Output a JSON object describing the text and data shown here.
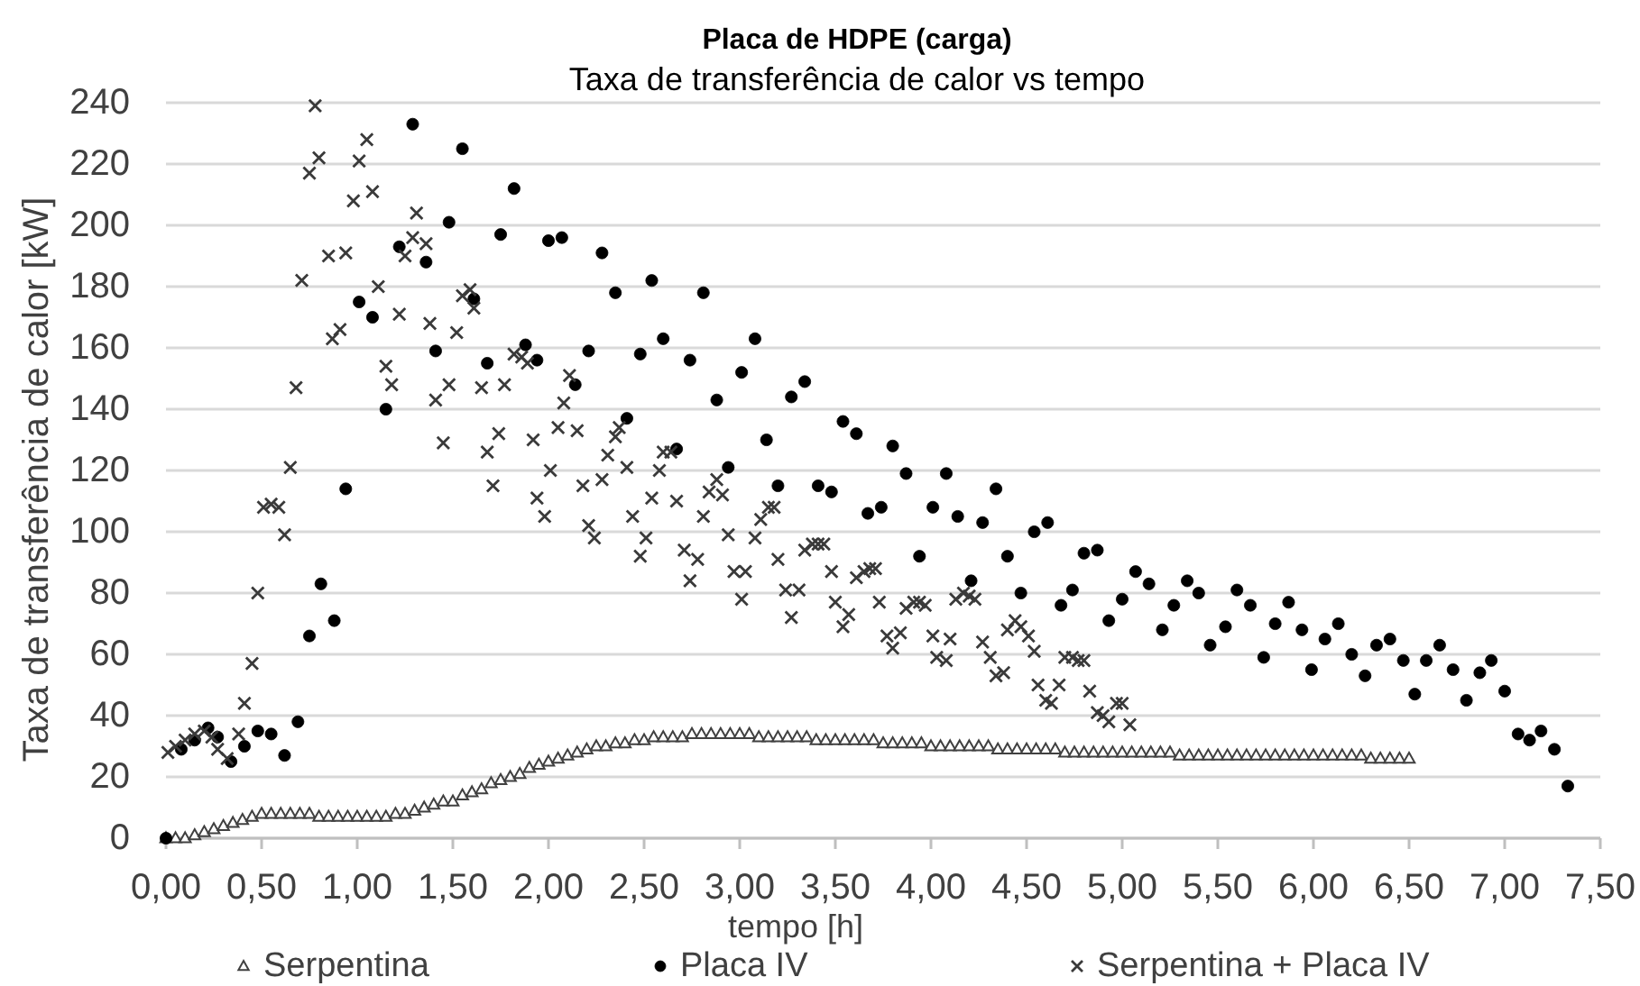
{
  "chart_data": {
    "type": "scatter",
    "title": "Placa de HDPE (carga)",
    "subtitle": "Taxa de transferência de calor vs tempo",
    "xlabel": "tempo [h]",
    "ylabel": "Taxa de transferência de calor [kW]",
    "xlim": [
      0,
      7.5
    ],
    "xticks": [
      {
        "value": 0,
        "label": "0,00"
      },
      {
        "value": 0.5,
        "label": "0,50"
      },
      {
        "value": 1,
        "label": "1,00"
      },
      {
        "value": 1.5,
        "label": "1,50"
      },
      {
        "value": 2,
        "label": "2,00"
      },
      {
        "value": 2.5,
        "label": "2,50"
      },
      {
        "value": 3,
        "label": "3,00"
      },
      {
        "value": 3.5,
        "label": "3,50"
      },
      {
        "value": 4,
        "label": "4,00"
      },
      {
        "value": 4.5,
        "label": "4,50"
      },
      {
        "value": 5,
        "label": "5,00"
      },
      {
        "value": 5.5,
        "label": "5,50"
      },
      {
        "value": 6,
        "label": "6,00"
      },
      {
        "value": 6.5,
        "label": "6,50"
      },
      {
        "value": 7,
        "label": "7,00"
      },
      {
        "value": 7.5,
        "label": "7,50"
      }
    ],
    "ylim": [
      0,
      240
    ],
    "yticks": [
      0,
      20,
      40,
      60,
      80,
      100,
      120,
      140,
      160,
      180,
      200,
      220,
      240
    ],
    "grid": "y",
    "legend": "bottom",
    "series": [
      {
        "name": "Serpentina",
        "color": "#404040",
        "marker": "triangle",
        "x": [
          0,
          0.05,
          0.1,
          0.15,
          0.2,
          0.25,
          0.3,
          0.35,
          0.4,
          0.45,
          0.5,
          0.55,
          0.6,
          0.65,
          0.7,
          0.75,
          0.8,
          0.85,
          0.9,
          0.95,
          1,
          1.05,
          1.1,
          1.15,
          1.2,
          1.25,
          1.3,
          1.35,
          1.4,
          1.45,
          1.5,
          1.55,
          1.6,
          1.65,
          1.7,
          1.75,
          1.8,
          1.85,
          1.9,
          1.95,
          2,
          2.05,
          2.1,
          2.15,
          2.2,
          2.25,
          2.3,
          2.35,
          2.4,
          2.45,
          2.5,
          2.55,
          2.6,
          2.65,
          2.7,
          2.75,
          2.8,
          2.85,
          2.9,
          2.95,
          3,
          3.05,
          3.1,
          3.15,
          3.2,
          3.25,
          3.3,
          3.35,
          3.4,
          3.45,
          3.5,
          3.55,
          3.6,
          3.65,
          3.7,
          3.75,
          3.8,
          3.85,
          3.9,
          3.95,
          4,
          4.05,
          4.1,
          4.15,
          4.2,
          4.25,
          4.3,
          4.35,
          4.4,
          4.45,
          4.5,
          4.55,
          4.6,
          4.65,
          4.7,
          4.75,
          4.8,
          4.85,
          4.9,
          4.95,
          5,
          5.05,
          5.1,
          5.15,
          5.2,
          5.25,
          5.3,
          5.35,
          5.4,
          5.45,
          5.5,
          5.55,
          5.6,
          5.65,
          5.7,
          5.75,
          5.8,
          5.85,
          5.9,
          5.95,
          6,
          6.05,
          6.1,
          6.15,
          6.2,
          6.25,
          6.3,
          6.35,
          6.4,
          6.45,
          6.5
        ],
        "values": [
          0,
          0,
          0,
          1,
          2,
          3,
          4,
          5,
          6,
          7,
          8,
          8,
          8,
          8,
          8,
          8,
          7,
          7,
          7,
          7,
          7,
          7,
          7,
          7,
          8,
          8,
          9,
          10,
          11,
          12,
          12,
          14,
          15,
          16,
          18,
          19,
          20,
          21,
          23,
          24,
          25,
          26,
          27,
          28,
          29,
          30,
          30,
          31,
          31,
          32,
          32,
          33,
          33,
          33,
          33,
          34,
          34,
          34,
          34,
          34,
          34,
          34,
          33,
          33,
          33,
          33,
          33,
          33,
          32,
          32,
          32,
          32,
          32,
          32,
          32,
          31,
          31,
          31,
          31,
          31,
          30,
          30,
          30,
          30,
          30,
          30,
          30,
          29,
          29,
          29,
          29,
          29,
          29,
          29,
          28,
          28,
          28,
          28,
          28,
          28,
          28,
          28,
          28,
          28,
          28,
          28,
          27,
          27,
          27,
          27,
          27,
          27,
          27,
          27,
          27,
          27,
          27,
          27,
          27,
          27,
          27,
          27,
          27,
          27,
          27,
          27,
          26,
          26,
          26,
          26,
          26
        ]
      },
      {
        "name": "Placa IV",
        "color": "#000000",
        "marker": "circle",
        "x": [
          0,
          0.08,
          0.15,
          0.22,
          0.27,
          0.34,
          0.41,
          0.48,
          0.55,
          0.62,
          0.69,
          0.75,
          0.81,
          0.88,
          0.94,
          1.01,
          1.08,
          1.15,
          1.22,
          1.29,
          1.36,
          1.41,
          1.48,
          1.55,
          1.61,
          1.68,
          1.75,
          1.82,
          1.88,
          1.94,
          2,
          2.07,
          2.14,
          2.21,
          2.28,
          2.35,
          2.41,
          2.48,
          2.54,
          2.6,
          2.67,
          2.74,
          2.81,
          2.88,
          2.94,
          3.01,
          3.08,
          3.14,
          3.2,
          3.27,
          3.34,
          3.41,
          3.48,
          3.54,
          3.61,
          3.67,
          3.74,
          3.8,
          3.87,
          3.94,
          4.01,
          4.08,
          4.14,
          4.21,
          4.27,
          4.34,
          4.4,
          4.47,
          4.54,
          4.61,
          4.68,
          4.74,
          4.8,
          4.87,
          4.93,
          5,
          5.07,
          5.14,
          5.21,
          5.27,
          5.34,
          5.4,
          5.46,
          5.54,
          5.6,
          5.67,
          5.74,
          5.8,
          5.87,
          5.94,
          5.99,
          6.06,
          6.13,
          6.2,
          6.27,
          6.33,
          6.4,
          6.47,
          6.53,
          6.59,
          6.66,
          6.73,
          6.8,
          6.87,
          6.93,
          7,
          7.07,
          7.13,
          7.19,
          7.26,
          7.33
        ],
        "values": [
          0,
          29,
          32,
          36,
          33,
          25,
          30,
          35,
          34,
          27,
          38,
          66,
          83,
          71,
          114,
          175,
          170,
          140,
          193,
          233,
          188,
          159,
          201,
          225,
          176,
          155,
          197,
          212,
          161,
          156,
          195,
          196,
          148,
          159,
          191,
          178,
          137,
          158,
          182,
          163,
          127,
          156,
          178,
          143,
          121,
          152,
          163,
          130,
          115,
          144,
          149,
          115,
          113,
          136,
          132,
          106,
          108,
          128,
          119,
          92,
          108,
          119,
          105,
          84,
          103,
          114,
          92,
          80,
          100,
          103,
          76,
          81,
          93,
          94,
          71,
          78,
          87,
          83,
          68,
          76,
          84,
          80,
          63,
          69,
          81,
          76,
          59,
          70,
          77,
          68,
          55,
          65,
          70,
          60,
          53,
          63,
          65,
          58,
          47,
          58,
          63,
          55,
          45,
          54,
          58,
          48,
          34,
          32,
          35,
          29,
          17
        ]
      },
      {
        "name": "Serpentina + Placa IV",
        "color": "#3a3a3a",
        "marker": "cross",
        "x": [
          0.01,
          0.05,
          0.1,
          0.15,
          0.2,
          0.24,
          0.27,
          0.32,
          0.38,
          0.41,
          0.45,
          0.48,
          0.51,
          0.55,
          0.59,
          0.62,
          0.65,
          0.68,
          0.71,
          0.75,
          0.78,
          0.8,
          0.85,
          0.87,
          0.91,
          0.94,
          0.98,
          1.01,
          1.05,
          1.08,
          1.11,
          1.15,
          1.18,
          1.22,
          1.25,
          1.29,
          1.31,
          1.36,
          1.38,
          1.41,
          1.45,
          1.48,
          1.52,
          1.55,
          1.59,
          1.61,
          1.65,
          1.68,
          1.71,
          1.74,
          1.77,
          1.82,
          1.86,
          1.89,
          1.92,
          1.94,
          1.98,
          2.01,
          2.05,
          2.08,
          2.11,
          2.15,
          2.18,
          2.21,
          2.24,
          2.28,
          2.31,
          2.35,
          2.37,
          2.41,
          2.44,
          2.48,
          2.51,
          2.54,
          2.58,
          2.6,
          2.64,
          2.67,
          2.71,
          2.74,
          2.78,
          2.81,
          2.84,
          2.88,
          2.91,
          2.94,
          2.97,
          3.01,
          3.03,
          3.08,
          3.11,
          3.15,
          3.18,
          3.2,
          3.24,
          3.27,
          3.31,
          3.34,
          3.38,
          3.41,
          3.44,
          3.48,
          3.5,
          3.54,
          3.57,
          3.61,
          3.65,
          3.68,
          3.71,
          3.73,
          3.77,
          3.8,
          3.84,
          3.87,
          3.91,
          3.94,
          3.97,
          4.01,
          4.03,
          4.08,
          4.1,
          4.13,
          4.17,
          4.2,
          4.23,
          4.27,
          4.31,
          4.34,
          4.38,
          4.4,
          4.44,
          4.47,
          4.51,
          4.54,
          4.56,
          4.6,
          4.63,
          4.67,
          4.7,
          4.74,
          4.77,
          4.8,
          4.83,
          4.87,
          4.9,
          4.93,
          4.97,
          5,
          5.04
        ],
        "values": [
          28,
          30,
          32,
          34,
          35,
          33,
          29,
          26,
          34,
          44,
          57,
          80,
          108,
          109,
          108,
          99,
          121,
          147,
          182,
          217,
          239,
          222,
          190,
          163,
          166,
          191,
          208,
          221,
          228,
          211,
          180,
          154,
          148,
          171,
          190,
          196,
          204,
          194,
          168,
          143,
          129,
          148,
          165,
          177,
          179,
          173,
          147,
          126,
          115,
          132,
          148,
          158,
          157,
          155,
          130,
          111,
          105,
          120,
          134,
          142,
          151,
          133,
          115,
          102,
          98,
          117,
          125,
          131,
          134,
          121,
          105,
          92,
          98,
          111,
          120,
          126,
          126,
          110,
          94,
          84,
          91,
          105,
          113,
          117,
          112,
          99,
          87,
          78,
          87,
          98,
          104,
          108,
          108,
          91,
          81,
          72,
          81,
          94,
          96,
          96,
          96,
          87,
          77,
          69,
          73,
          85,
          87,
          88,
          88,
          77,
          66,
          62,
          67,
          75,
          77,
          77,
          76,
          66,
          59,
          58,
          65,
          78,
          80,
          79,
          78,
          64,
          59,
          53,
          54,
          68,
          71,
          69,
          66,
          61,
          50,
          45,
          44,
          50,
          59,
          59,
          58,
          58,
          48,
          41,
          40,
          38,
          44,
          44,
          37
        ]
      }
    ]
  }
}
